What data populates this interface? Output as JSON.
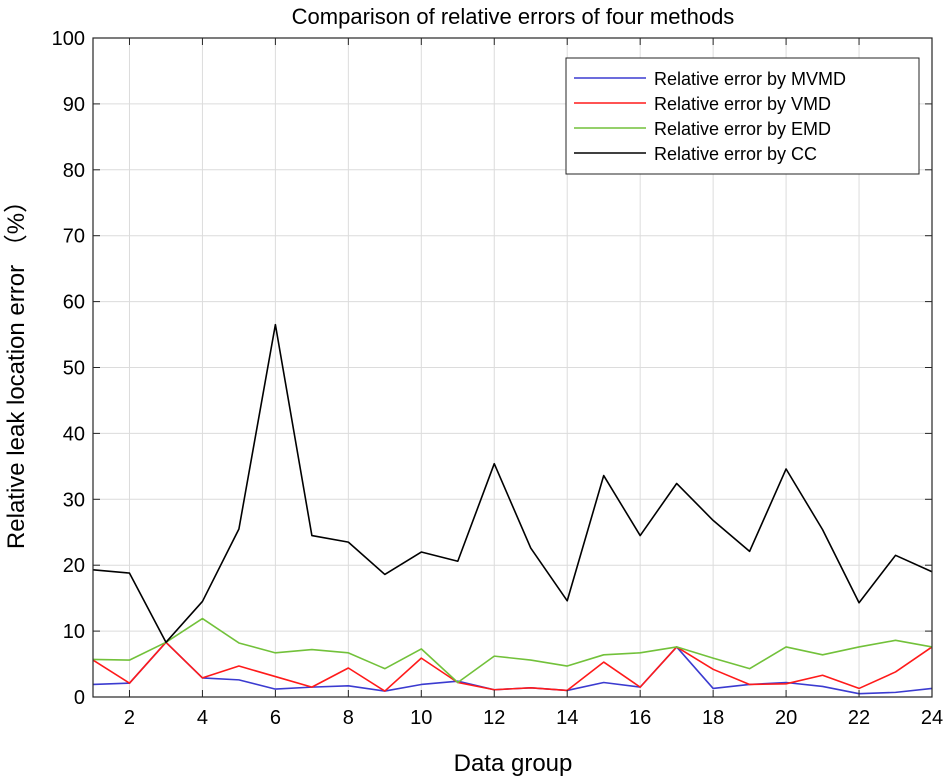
{
  "chart_data": {
    "type": "line",
    "title": "Comparison of relative errors of four methods",
    "xlabel": "Data group",
    "ylabel": "Relative leak location error （%）",
    "xlim": [
      1,
      24
    ],
    "ylim": [
      0,
      100
    ],
    "xticks": [
      2,
      4,
      6,
      8,
      10,
      12,
      14,
      16,
      18,
      20,
      22,
      24
    ],
    "yticks": [
      0,
      10,
      20,
      30,
      40,
      50,
      60,
      70,
      80,
      90,
      100
    ],
    "grid": true,
    "legend_position": "top-right",
    "x": [
      1,
      2,
      3,
      4,
      5,
      6,
      7,
      8,
      9,
      10,
      11,
      12,
      13,
      14,
      15,
      16,
      17,
      18,
      19,
      20,
      21,
      22,
      23,
      24
    ],
    "series": [
      {
        "name": "Relative error by MVMD",
        "color": "#3b3bd0",
        "values": [
          1.9,
          2.1,
          8.3,
          2.9,
          2.6,
          1.2,
          1.5,
          1.7,
          0.9,
          1.9,
          2.4,
          1.1,
          1.4,
          1.0,
          2.2,
          1.5,
          7.6,
          1.3,
          1.9,
          2.2,
          1.6,
          0.5,
          0.7,
          1.3
        ]
      },
      {
        "name": "Relative error by VMD",
        "color": "#ff1a1a",
        "values": [
          5.6,
          2.1,
          8.3,
          2.9,
          4.7,
          3.1,
          1.5,
          4.4,
          0.9,
          5.9,
          2.2,
          1.1,
          1.4,
          1.0,
          5.3,
          1.5,
          7.6,
          4.2,
          1.9,
          2.0,
          3.3,
          1.3,
          3.8,
          7.6
        ]
      },
      {
        "name": "Relative error by EMD",
        "color": "#72c13a",
        "values": [
          5.7,
          5.6,
          8.3,
          11.9,
          8.2,
          6.7,
          7.2,
          6.7,
          4.3,
          7.3,
          2.2,
          6.2,
          5.6,
          4.7,
          6.4,
          6.7,
          7.6,
          5.9,
          4.3,
          7.6,
          6.4,
          7.6,
          8.6,
          7.6
        ]
      },
      {
        "name": "Relative error by CC",
        "color": "#000000",
        "values": [
          19.3,
          18.8,
          8.3,
          14.5,
          25.5,
          56.5,
          24.5,
          23.5,
          18.6,
          22.0,
          20.6,
          35.4,
          22.6,
          14.6,
          33.6,
          24.5,
          32.4,
          26.8,
          22.1,
          34.6,
          25.4,
          14.3,
          21.5,
          19.0
        ]
      }
    ]
  }
}
